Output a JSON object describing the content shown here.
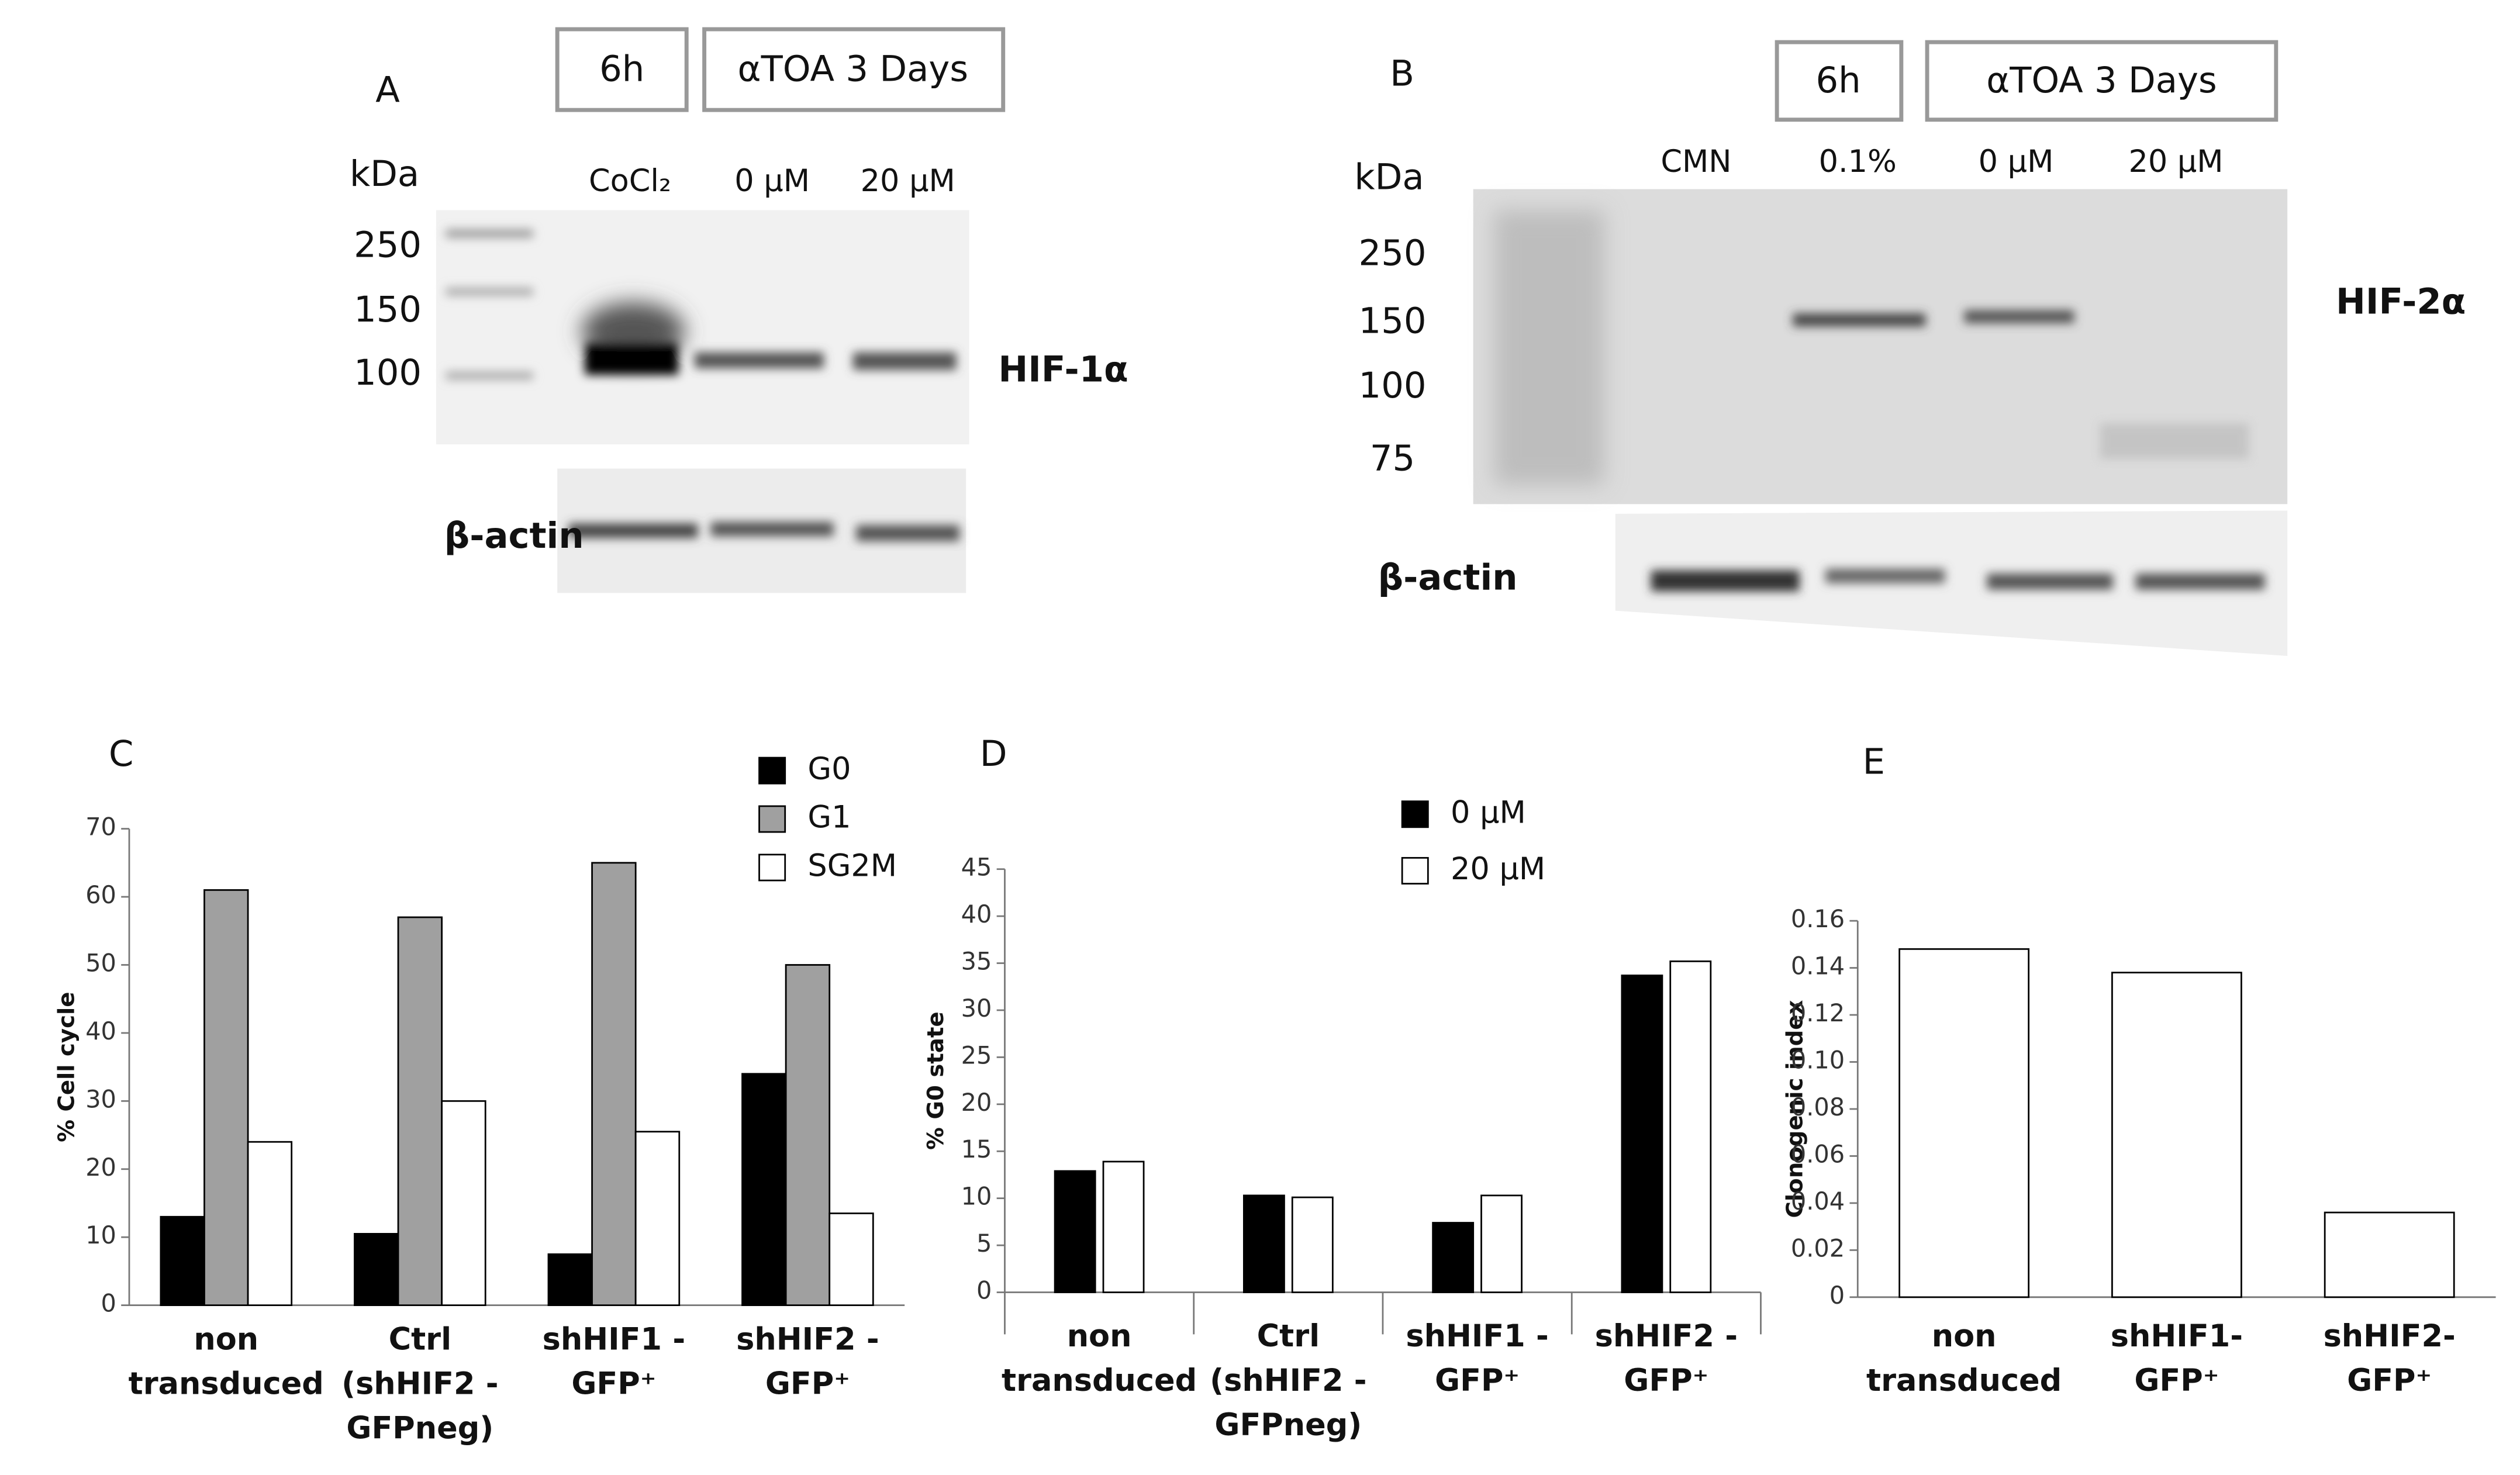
{
  "blots": [
    {
      "panel": "A",
      "boxes": [
        "6h",
        "αTOA 3 Days"
      ],
      "unit": "kDa",
      "lanes": [
        "CoCl₂",
        "0 µM",
        "20 µM"
      ],
      "markers": [
        "250",
        "150",
        "100"
      ],
      "target": "HIF-1α",
      "control": "β-actin"
    },
    {
      "panel": "B",
      "boxes": [
        "6h",
        "αTOA 3 Days"
      ],
      "unit": "kDa",
      "lanes": [
        "CMN",
        "0.1%",
        "0 µM",
        "20 µM"
      ],
      "markers": [
        "250",
        "150",
        "100",
        "75"
      ],
      "target": "HIF-2α",
      "control": "β-actin"
    }
  ],
  "chart_data": [
    {
      "type": "bar",
      "panel": "C",
      "ylabel": "% Cell cycle",
      "categories": [
        "non\ntransduced",
        "Ctrl\n(shHIF2 -\nGFPneg)",
        "shHIF1 -\nGFP⁺",
        "shHIF2 -\nGFP⁺"
      ],
      "series": [
        {
          "name": "G0",
          "color": "#000000",
          "values": [
            13,
            10.5,
            7.5,
            34
          ]
        },
        {
          "name": "G1",
          "color": "#a0a0a0",
          "values": [
            61,
            57,
            65,
            50
          ]
        },
        {
          "name": "SG2M",
          "color": "#ffffff",
          "values": [
            24,
            30,
            25.5,
            13.5
          ]
        }
      ],
      "ylim": [
        0,
        70
      ],
      "yticks": [
        0,
        10,
        20,
        30,
        40,
        50,
        60,
        70
      ]
    },
    {
      "type": "bar",
      "panel": "D",
      "ylabel": "% G0 state",
      "categories": [
        "non\ntransduced",
        "Ctrl\n(shHIF2 -\nGFPneg)",
        "shHIF1 -\nGFP⁺",
        "shHIF2 -\nGFP⁺"
      ],
      "series": [
        {
          "name": "0 µM",
          "color": "#000000",
          "values": [
            12.9,
            10.3,
            7.4,
            33.7
          ]
        },
        {
          "name": "20 µM",
          "color": "#ffffff",
          "values": [
            13.9,
            10.1,
            10.3,
            35.2
          ]
        }
      ],
      "ylim": [
        0,
        45
      ],
      "yticks": [
        0,
        5,
        10,
        15,
        20,
        25,
        30,
        35,
        40,
        45
      ]
    },
    {
      "type": "bar",
      "panel": "E",
      "ylabel": "Clonogenic index",
      "categories": [
        "non\ntransduced",
        "shHIF1-\nGFP⁺",
        "shHIF2-\nGFP⁺"
      ],
      "series": [
        {
          "color": "#ffffff",
          "values": [
            0.148,
            0.138,
            0.036
          ]
        }
      ],
      "ylim": [
        0,
        0.16
      ],
      "yticks": [
        0,
        0.02,
        0.04,
        0.06,
        0.08,
        {
          "value": 0.1,
          "label": "0.10"
        },
        0.12,
        0.14,
        0.16
      ]
    }
  ]
}
